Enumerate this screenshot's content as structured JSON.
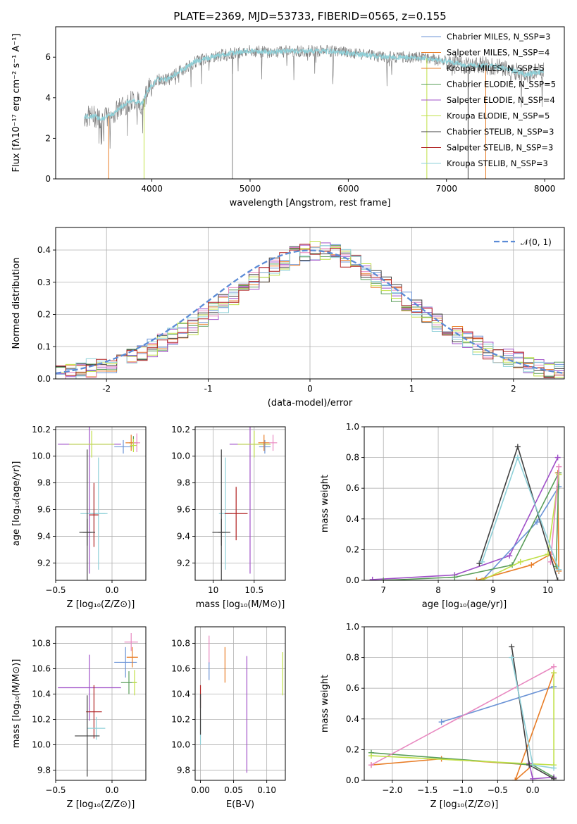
{
  "figure_title": "PLATE=2369, MJD=53733, FIBERID=0565, z=0.155",
  "model_colors": [
    "#6b93d6",
    "#e87d27",
    "#5a9e5a",
    "#a050c8",
    "#e888c0",
    "#404040",
    "#c0e048",
    "#8fd0d8",
    "#b02020",
    "#7e7e7e"
  ],
  "chart_data": [
    {
      "id": "spectrum",
      "type": "line",
      "title": "PLATE=2369, MJD=53733, FIBERID=0565, z=0.155",
      "xlabel": "wavelength [Angstrom, rest frame]",
      "ylabel": "Flux [fλ10⁻¹⁷ erg cm⁻² s⁻¹ A⁻¹]",
      "xlim": [
        3020,
        8200
      ],
      "ylim": [
        0,
        7.5
      ],
      "xticks": [
        4000,
        5000,
        6000,
        7000,
        8000
      ],
      "yticks": [
        0,
        2,
        4,
        6
      ],
      "grid": false,
      "legend_position": "right",
      "data_color": "#808080",
      "model_color": "#8fd0d8",
      "continuum": [
        [
          3310,
          3.05
        ],
        [
          3400,
          3.1
        ],
        [
          3500,
          2.95
        ],
        [
          3600,
          3.2
        ],
        [
          3700,
          3.6
        ],
        [
          3800,
          3.9
        ],
        [
          3900,
          3.7
        ],
        [
          3950,
          4.3
        ],
        [
          4050,
          4.9
        ],
        [
          4150,
          4.9
        ],
        [
          4250,
          5.2
        ],
        [
          4350,
          5.5
        ],
        [
          4450,
          5.8
        ],
        [
          4600,
          6.0
        ],
        [
          4800,
          6.2
        ],
        [
          5000,
          6.3
        ],
        [
          5200,
          6.25
        ],
        [
          5400,
          6.3
        ],
        [
          5600,
          6.3
        ],
        [
          5800,
          6.3
        ],
        [
          6000,
          6.2
        ],
        [
          6200,
          6.1
        ],
        [
          6400,
          6.0
        ],
        [
          6600,
          6.0
        ],
        [
          6800,
          5.95
        ],
        [
          7000,
          5.8
        ],
        [
          7200,
          5.6
        ],
        [
          7400,
          5.6
        ],
        [
          7600,
          5.45
        ],
        [
          7800,
          5.15
        ],
        [
          7990,
          5.3
        ]
      ],
      "series": [
        {
          "name": "Chabrier MILES, N_SSP=3",
          "color": "#6b93d6"
        },
        {
          "name": "Salpeter MILES, N_SSP=4",
          "color": "#e87d27"
        },
        {
          "name": "Kroupa MILES, N_SSP=5",
          "color": "#e87d27"
        },
        {
          "name": "Chabrier ELODIE, N_SSP=5",
          "color": "#5a9e5a"
        },
        {
          "name": "Salpeter ELODIE, N_SSP=4",
          "color": "#a050c8"
        },
        {
          "name": "Kroupa ELODIE, N_SSP=5",
          "color": "#c0e048"
        },
        {
          "name": "Chabrier STELIB, N_SSP=3",
          "color": "#404040"
        },
        {
          "name": "Salpeter STELIB, N_SSP=3",
          "color": "#b02020"
        },
        {
          "name": "Kroupa STELIB, N_SSP=3",
          "color": "#8fd0d8"
        }
      ]
    },
    {
      "id": "residuals",
      "type": "area",
      "xlabel": "(data-model)/error",
      "ylabel": "Normed distribution",
      "xlim": [
        -2.5,
        2.5
      ],
      "ylim": [
        0,
        0.47
      ],
      "xticks": [
        -2,
        -1,
        0,
        1,
        2
      ],
      "yticks": [
        0.0,
        0.1,
        0.2,
        0.3,
        0.4
      ],
      "grid": true,
      "legend_position": "top-right",
      "reference_curve": {
        "name": "𝒩(0, 1)",
        "color": "#5b8bd6",
        "style": "dashed"
      },
      "bin_edges": [
        -2.5,
        -2.4,
        -2.3,
        -2.2,
        -2.1,
        -2.0,
        -1.9,
        -1.8,
        -1.7,
        -1.6,
        -1.5,
        -1.4,
        -1.3,
        -1.2,
        -1.1,
        -1.0,
        -0.9,
        -0.8,
        -0.7,
        -0.6,
        -0.5,
        -0.4,
        -0.3,
        -0.2,
        -0.1,
        0.0,
        0.1,
        0.2,
        0.3,
        0.4,
        0.5,
        0.6,
        0.7,
        0.8,
        0.9,
        1.0,
        1.1,
        1.2,
        1.3,
        1.4,
        1.5,
        1.6,
        1.7,
        1.8,
        1.9,
        2.0,
        2.1,
        2.2,
        2.3,
        2.4,
        2.5
      ],
      "base_density": [
        0.018,
        0.022,
        0.027,
        0.033,
        0.04,
        0.048,
        0.058,
        0.069,
        0.081,
        0.095,
        0.111,
        0.128,
        0.146,
        0.166,
        0.188,
        0.21,
        0.233,
        0.256,
        0.28,
        0.303,
        0.326,
        0.348,
        0.366,
        0.382,
        0.393,
        0.398,
        0.396,
        0.388,
        0.374,
        0.356,
        0.334,
        0.311,
        0.288,
        0.264,
        0.241,
        0.218,
        0.196,
        0.175,
        0.155,
        0.137,
        0.12,
        0.104,
        0.09,
        0.077,
        0.065,
        0.055,
        0.046,
        0.038,
        0.031,
        0.025
      ],
      "series": [
        {
          "name": "Chabrier MILES",
          "color": "#6b93d6"
        },
        {
          "name": "Salpeter MILES",
          "color": "#e87d27"
        },
        {
          "name": "Kroupa MILES",
          "color": "#5a9e5a"
        },
        {
          "name": "Chabrier ELODIE",
          "color": "#a050c8"
        },
        {
          "name": "Salpeter ELODIE",
          "color": "#e888c0"
        },
        {
          "name": "Kroupa ELODIE",
          "color": "#404040"
        },
        {
          "name": "Chabrier STELIB",
          "color": "#c0e048"
        },
        {
          "name": "Salpeter STELIB",
          "color": "#8fd0d8"
        },
        {
          "name": "Kroupa STELIB",
          "color": "#b02020"
        }
      ]
    },
    {
      "id": "age-vs-Z",
      "type": "scatter",
      "xlabel": "Z [log₁₀(Z/Z⊙)]",
      "ylabel": "age  [log₁₀(age/yr)]",
      "xlim": [
        -0.5,
        0.3
      ],
      "ylim": [
        9.07,
        10.22
      ],
      "xticks": [
        -0.5,
        0.0
      ],
      "xticklabels": [
        "−0.5",
        "0.0"
      ],
      "yticks": [
        9.2,
        9.4,
        9.6,
        9.8,
        10.0,
        10.2
      ],
      "grid": true,
      "points": [
        {
          "x": -0.2,
          "y": 10.09,
          "xerr": 0.28,
          "yerr": 0.97,
          "color": "#a050c8"
        },
        {
          "x": -0.18,
          "y": 10.09,
          "xerr": 0.2,
          "yerr": 0.1,
          "color": "#c0e048"
        },
        {
          "x": 0.1,
          "y": 10.07,
          "xerr": 0.08,
          "yerr": 0.05,
          "color": "#6b93d6"
        },
        {
          "x": 0.19,
          "y": 10.1,
          "xerr": 0.04,
          "yerr": 0.05,
          "color": "#5a9e5a"
        },
        {
          "x": 0.17,
          "y": 10.1,
          "xerr": 0.05,
          "yerr": 0.06,
          "color": "#e87d27"
        },
        {
          "x": 0.19,
          "y": 10.08,
          "xerr": 0.03,
          "yerr": 0.05,
          "color": "#c0e048"
        },
        {
          "x": -0.12,
          "y": 9.57,
          "xerr": 0.06,
          "yerr": 0.42,
          "color": "#8fd0d8"
        },
        {
          "x": -0.16,
          "y": 9.57,
          "xerr": 0.12,
          "yerr": 0.2,
          "color": "#8fd0d8"
        },
        {
          "x": -0.16,
          "y": 9.56,
          "xerr": 0.04,
          "yerr": 0.24,
          "color": "#b02020"
        },
        {
          "x": -0.22,
          "y": 9.43,
          "xerr": 0.07,
          "yerr": 0.62,
          "color": "#404040"
        },
        {
          "x": -0.22,
          "y": 9.43,
          "xerr": 0.04,
          "yerr": 0.1,
          "color": "#404040"
        },
        {
          "x": 0.22,
          "y": 10.1,
          "xerr": 0.03,
          "yerr": 0.07,
          "color": "#e888c0"
        }
      ]
    },
    {
      "id": "age-vs-mass",
      "type": "scatter",
      "xlabel": "mass [log₁₀(M/M⊙)]",
      "ylabel": "",
      "xlim": [
        9.78,
        10.88
      ],
      "ylim": [
        9.07,
        10.22
      ],
      "xticks": [
        10.0,
        10.5
      ],
      "yticks": [
        9.2,
        9.4,
        9.6,
        9.8,
        10.0,
        10.2
      ],
      "grid": true,
      "points": [
        {
          "x": 10.45,
          "y": 10.09,
          "xerr": 0.25,
          "yerr": 0.97,
          "color": "#a050c8"
        },
        {
          "x": 10.5,
          "y": 10.09,
          "xerr": 0.2,
          "yerr": 0.1,
          "color": "#c0e048"
        },
        {
          "x": 10.63,
          "y": 10.07,
          "xerr": 0.07,
          "yerr": 0.05,
          "color": "#6b93d6"
        },
        {
          "x": 10.62,
          "y": 10.1,
          "xerr": 0.07,
          "yerr": 0.06,
          "color": "#e87d27"
        },
        {
          "x": 10.73,
          "y": 10.1,
          "xerr": 0.05,
          "yerr": 0.06,
          "color": "#e888c0"
        },
        {
          "x": 10.15,
          "y": 9.57,
          "xerr": 0.08,
          "yerr": 0.42,
          "color": "#8fd0d8"
        },
        {
          "x": 10.28,
          "y": 9.57,
          "xerr": 0.14,
          "yerr": 0.2,
          "color": "#b02020"
        },
        {
          "x": 10.1,
          "y": 9.43,
          "xerr": 0.11,
          "yerr": 0.62,
          "color": "#404040"
        },
        {
          "x": 10.1,
          "y": 9.43,
          "xerr": 0.04,
          "yerr": 0.1,
          "color": "#404040"
        }
      ]
    },
    {
      "id": "massweight-vs-age",
      "type": "line",
      "xlabel": "age  [log₁₀(age/yr)]",
      "ylabel": "mass weight",
      "xlim": [
        6.65,
        10.3
      ],
      "ylim": [
        0,
        1.0
      ],
      "xticks": [
        7,
        8,
        9,
        10
      ],
      "yticks": [
        0.0,
        0.2,
        0.4,
        0.6,
        0.8,
        1.0
      ],
      "grid": true,
      "series": [
        {
          "color": "#a050c8",
          "points": [
            [
              6.8,
              0.005
            ],
            [
              8.3,
              0.035
            ],
            [
              9.3,
              0.16
            ],
            [
              10.18,
              0.8
            ]
          ]
        },
        {
          "color": "#6b93d6",
          "points": [
            [
              8.8,
              0.0
            ],
            [
              9.8,
              0.38
            ],
            [
              10.2,
              0.61
            ]
          ]
        },
        {
          "color": "#e87d27",
          "points": [
            [
              8.7,
              0.0
            ],
            [
              9.7,
              0.1
            ],
            [
              10.05,
              0.17
            ],
            [
              10.2,
              0.06
            ],
            [
              10.18,
              0.7
            ]
          ]
        },
        {
          "color": "#5a9e5a",
          "points": [
            [
              7.0,
              0.0
            ],
            [
              8.3,
              0.02
            ],
            [
              9.35,
              0.1
            ],
            [
              10.2,
              0.7
            ],
            [
              10.15,
              0.09
            ]
          ]
        },
        {
          "color": "#c0e048",
          "points": [
            [
              8.8,
              0.0
            ],
            [
              9.5,
              0.12
            ],
            [
              10.0,
              0.17
            ],
            [
              10.2,
              0.69
            ]
          ]
        },
        {
          "color": "#e888c0",
          "points": [
            [
              10.05,
              0.12
            ],
            [
              10.2,
              0.74
            ]
          ]
        },
        {
          "color": "#404040",
          "points": [
            [
              8.75,
              0.11
            ],
            [
              9.45,
              0.87
            ],
            [
              10.18,
              0.0
            ]
          ]
        },
        {
          "color": "#8fd0d8",
          "points": [
            [
              8.8,
              0.12
            ],
            [
              9.45,
              0.8
            ],
            [
              10.2,
              0.07
            ]
          ]
        }
      ]
    },
    {
      "id": "mass-vs-Z",
      "type": "scatter",
      "xlabel": "Z [log₁₀(Z/Z⊙)]",
      "ylabel": "mass [log₁₀(M/M⊙)]",
      "xlim": [
        -0.5,
        0.3
      ],
      "ylim": [
        9.72,
        10.93
      ],
      "xticks": [
        -0.5,
        0.0
      ],
      "xticklabels": [
        "−0.5",
        "0.0"
      ],
      "yticks": [
        9.8,
        10.0,
        10.2,
        10.4,
        10.6,
        10.8
      ],
      "grid": true,
      "points": [
        {
          "x": -0.2,
          "y": 10.45,
          "xerr": 0.28,
          "yerr": 0.26,
          "color": "#a050c8"
        },
        {
          "x": 0.12,
          "y": 10.65,
          "xerr": 0.1,
          "yerr": 0.12,
          "color": "#6b93d6"
        },
        {
          "x": 0.18,
          "y": 10.69,
          "xerr": 0.05,
          "yerr": 0.08,
          "color": "#e87d27"
        },
        {
          "x": 0.17,
          "y": 10.81,
          "xerr": 0.06,
          "yerr": 0.07,
          "color": "#e888c0"
        },
        {
          "x": 0.15,
          "y": 10.49,
          "xerr": 0.07,
          "yerr": 0.09,
          "color": "#5a9e5a"
        },
        {
          "x": 0.2,
          "y": 10.49,
          "xerr": 0.02,
          "yerr": 0.1,
          "color": "#c0e048"
        },
        {
          "x": -0.16,
          "y": 10.26,
          "xerr": 0.07,
          "yerr": 0.21,
          "color": "#b02020"
        },
        {
          "x": -0.14,
          "y": 10.13,
          "xerr": 0.08,
          "yerr": 0.09,
          "color": "#8fd0d8"
        },
        {
          "x": -0.22,
          "y": 10.07,
          "xerr": 0.11,
          "yerr": 0.32,
          "color": "#404040"
        }
      ]
    },
    {
      "id": "mass-vs-ebv",
      "type": "scatter",
      "xlabel": "E(B-V)",
      "ylabel": "",
      "xlim": [
        -0.008,
        0.128
      ],
      "ylim": [
        9.72,
        10.93
      ],
      "xticks": [
        0.0,
        0.05,
        0.1
      ],
      "xticklabels": [
        "0.00",
        "0.05",
        "0.10"
      ],
      "yticks": [
        9.8,
        10.0,
        10.2,
        10.4,
        10.6,
        10.8
      ],
      "grid": true,
      "points": [
        {
          "x": 0.0,
          "y": 10.38,
          "xerr": 0,
          "yerr": 0.09,
          "color": "#b02020"
        },
        {
          "x": 0.0,
          "y": 10.1,
          "xerr": 0,
          "yerr": 0.1,
          "color": "#8fd0d8"
        },
        {
          "x": 0.0,
          "y": 10.24,
          "xerr": 0,
          "yerr": 0.16,
          "color": "#404040"
        },
        {
          "x": 0.013,
          "y": 10.75,
          "xerr": 0,
          "yerr": 0.11,
          "color": "#e888c0"
        },
        {
          "x": 0.013,
          "y": 10.58,
          "xerr": 0,
          "yerr": 0.07,
          "color": "#6b93d6"
        },
        {
          "x": 0.037,
          "y": 10.63,
          "xerr": 0,
          "yerr": 0.14,
          "color": "#e87d27"
        },
        {
          "x": 0.07,
          "y": 10.24,
          "xerr": 0,
          "yerr": 0.46,
          "color": "#a050c8"
        },
        {
          "x": 0.124,
          "y": 10.56,
          "xerr": 0,
          "yerr": 0.17,
          "color": "#c0e048"
        }
      ]
    },
    {
      "id": "massweight-vs-Z",
      "type": "line",
      "xlabel": "Z [log₁₀(Z/Z⊙)]",
      "ylabel": "mass weight",
      "xlim": [
        -2.4,
        0.45
      ],
      "ylim": [
        0,
        1.0
      ],
      "xticks": [
        -2.0,
        -1.5,
        -1.0,
        -0.5,
        0.0
      ],
      "xticklabels": [
        "−2.0",
        "−1.5",
        "−1.0",
        "−0.5",
        "0.0"
      ],
      "yticks": [
        0.0,
        0.2,
        0.4,
        0.6,
        0.8,
        1.0
      ],
      "grid": true,
      "series": [
        {
          "color": "#6b93d6",
          "points": [
            [
              -1.3,
              0.38
            ],
            [
              0.3,
              0.61
            ]
          ]
        },
        {
          "color": "#e87d27",
          "points": [
            [
              -2.3,
              0.1
            ],
            [
              -1.3,
              0.14
            ],
            [
              0.0,
              0.1
            ],
            [
              -0.25,
              0.0
            ],
            [
              0.3,
              0.7
            ]
          ]
        },
        {
          "color": "#5a9e5a",
          "points": [
            [
              -2.3,
              0.18
            ],
            [
              0.0,
              0.1
            ],
            [
              0.3,
              0.02
            ]
          ]
        },
        {
          "color": "#e888c0",
          "points": [
            [
              -2.3,
              0.1
            ],
            [
              0.3,
              0.74
            ]
          ]
        },
        {
          "color": "#c0e048",
          "points": [
            [
              -2.3,
              0.16
            ],
            [
              0.3,
              0.1
            ],
            [
              0.3,
              0.7
            ]
          ]
        },
        {
          "color": "#a050c8",
          "points": [
            [
              -0.05,
              0.11
            ],
            [
              0.0,
              0.01
            ],
            [
              0.3,
              0.02
            ]
          ]
        },
        {
          "color": "#404040",
          "points": [
            [
              -0.3,
              0.87
            ],
            [
              -0.05,
              0.1
            ],
            [
              0.3,
              0.01
            ]
          ]
        },
        {
          "color": "#8fd0d8",
          "points": [
            [
              -0.3,
              0.8
            ],
            [
              0.0,
              0.1
            ],
            [
              0.3,
              0.08
            ]
          ]
        }
      ]
    }
  ]
}
